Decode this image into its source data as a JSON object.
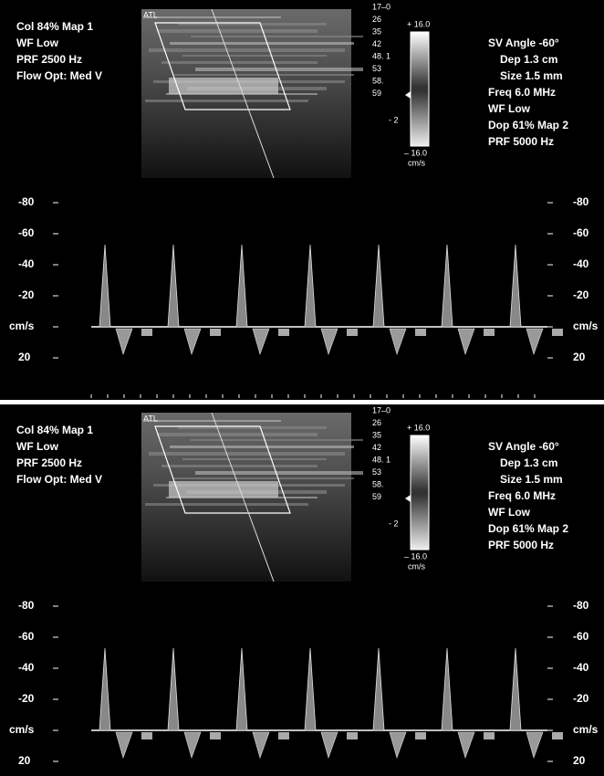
{
  "panels": [
    {
      "logo": "ATL",
      "left_info": [
        "Col 84%  Map 1",
        "WF Low",
        "PRF 2500  Hz",
        "Flow Opt: Med V"
      ],
      "depth_labels": [
        "17–0",
        "26",
        "35",
        "42",
        "48. 1",
        "53",
        "58.",
        "59"
      ],
      "color_bar": {
        "top": "+ 16.0",
        "mid": "- 2",
        "bottom": "– 16.0",
        "unit": "cm/s"
      },
      "right_info": [
        "SV Angle -60°",
        "Dep 1.3  cm",
        "Size 1.5  mm",
        "Freq 6.0  MHz",
        "WF Low",
        "Dop 61%  Map 2",
        "PRF 5000  Hz"
      ],
      "axis_left": [
        "-80",
        "-60",
        "-40",
        "-20",
        "cm/s",
        "20"
      ],
      "axis_right": [
        "-80",
        "-60",
        "-40",
        "-20",
        "cm/s",
        "20"
      ]
    },
    {
      "logo": "ATL",
      "left_info": [
        "Col 84%  Map 1",
        "WF Low",
        "PRF 2500  Hz",
        "Flow Opt: Med V"
      ],
      "depth_labels": [
        "17–0",
        "26",
        "35",
        "42",
        "48. 1",
        "53",
        "58.",
        "59"
      ],
      "color_bar": {
        "top": "+ 16.0",
        "mid": "- 2",
        "bottom": "– 16.0",
        "unit": "cm/s"
      },
      "right_info": [
        "SV Angle -60°",
        "Dep 1.3  cm",
        "Size 1.5  mm",
        "Freq 6.0  MHz",
        "WF Low",
        "Dop 61%  Map 2",
        "PRF 5000  Hz"
      ],
      "axis_left": [
        "-80",
        "-60",
        "-40",
        "-20",
        "cm/s",
        "20"
      ],
      "axis_right": [
        "-80",
        "-60",
        "-40",
        "-20",
        "cm/s",
        "20"
      ]
    }
  ]
}
